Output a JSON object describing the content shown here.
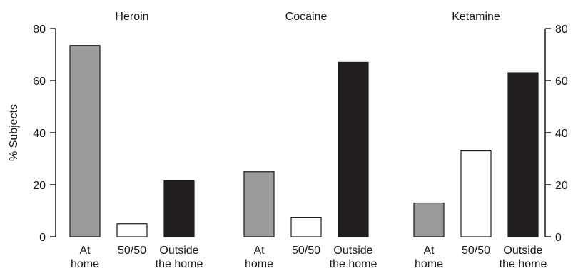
{
  "chart_data": {
    "type": "bar",
    "ylabel": "% Subjects",
    "ylim": [
      0,
      80
    ],
    "yticks": [
      0,
      20,
      40,
      60,
      80
    ],
    "right_axis": true,
    "grid": false,
    "categories": [
      {
        "lines": [
          "At",
          "home"
        ],
        "color": "#9b9b9b"
      },
      {
        "lines": [
          "50/50",
          ""
        ],
        "color": "#ffffff"
      },
      {
        "lines": [
          "Outside",
          "the home"
        ],
        "color": "#231f20"
      }
    ],
    "groups": [
      {
        "name": "Heroin",
        "values": [
          73.5,
          5,
          21.5
        ]
      },
      {
        "name": "Cocaine",
        "values": [
          25,
          7.5,
          67
        ]
      },
      {
        "name": "Ketamine",
        "values": [
          13,
          33,
          63
        ]
      }
    ]
  }
}
